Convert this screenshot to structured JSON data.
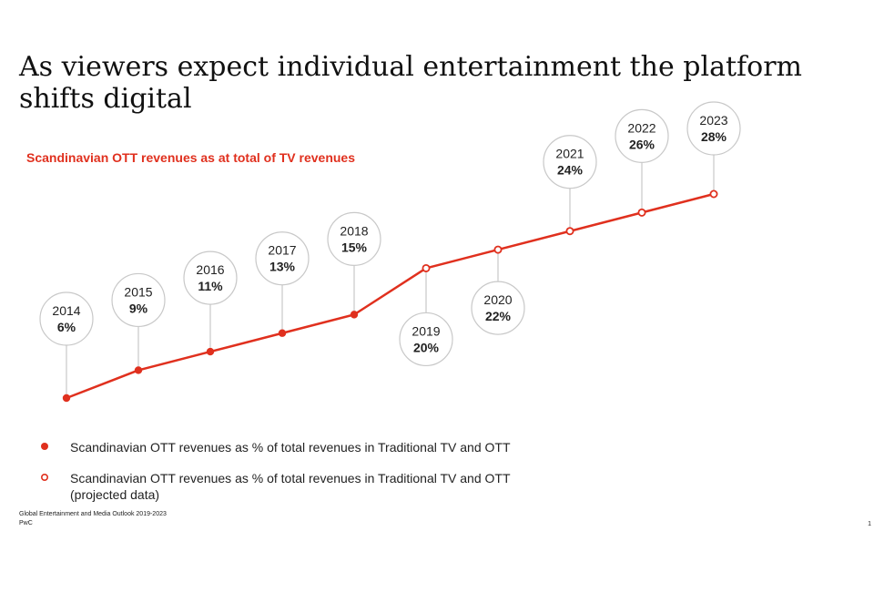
{
  "title": "As viewers expect individual entertainment the platform shifts digital",
  "subtitle": "Scandinavian OTT revenues as at total of TV revenues",
  "chart_data": {
    "type": "line",
    "title": "Scandinavian OTT revenues as at total of TV revenues",
    "x": [
      "2014",
      "2015",
      "2016",
      "2017",
      "2018",
      "2019",
      "2020",
      "2021",
      "2022",
      "2023"
    ],
    "y": [
      6,
      9,
      11,
      13,
      15,
      20,
      22,
      24,
      26,
      28
    ],
    "labels": [
      "6%",
      "9%",
      "11%",
      "13%",
      "15%",
      "20%",
      "22%",
      "24%",
      "26%",
      "28%"
    ],
    "projected_from_index": 5,
    "series": [
      {
        "name": "Scandinavian OTT revenues as % of total revenues in Traditional TV and OTT",
        "style": "filled",
        "years": [
          "2014",
          "2015",
          "2016",
          "2017",
          "2018"
        ]
      },
      {
        "name": "Scandinavian OTT revenues as % of total revenues in Traditional TV and OTT (projected data)",
        "style": "open",
        "years": [
          "2019",
          "2020",
          "2021",
          "2022",
          "2023"
        ]
      }
    ],
    "ylim": [
      6,
      28
    ],
    "grid": false,
    "axes_visible": false
  },
  "legend": {
    "actual": "Scandinavian OTT revenues as % of total revenues in Traditional TV and OTT",
    "projected": "Scandinavian OTT revenues as % of total revenues in Traditional TV and OTT (projected data)"
  },
  "footer": {
    "source": "Global Entertainment and Media Outlook 2019-2023",
    "company": "PwC",
    "page": "1"
  },
  "colors": {
    "accent": "#e0301e",
    "bubble_border": "#c8c8c8",
    "leader_line": "#c8c8c8"
  }
}
